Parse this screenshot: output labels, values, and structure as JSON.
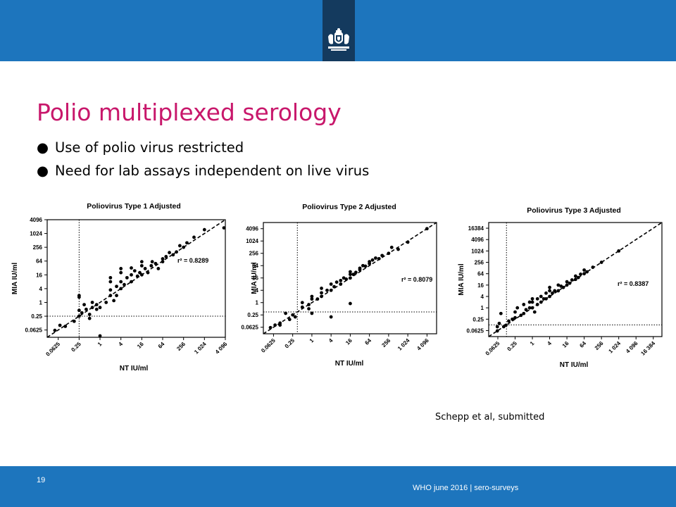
{
  "slide": {
    "title": "Polio multiplexed serology",
    "bullets": [
      "Use of polio virus restricted",
      "Need for lab assays independent on live virus"
    ],
    "citation": "Schepp et al, submitted",
    "page_number": "19",
    "footer": "WHO june 2016 | sero-surveys",
    "logo_icon": "coat-of-arms-icon",
    "colors": {
      "bar": "#1d75bd",
      "logo_box": "#143a5e",
      "title": "#c8176b"
    }
  },
  "chart_data": [
    {
      "type": "scatter",
      "title": "Poliovirus Type 1 Adjusted",
      "xlabel": "NT IU/ml",
      "ylabel": "MIA IU/ml",
      "x_ticks": [
        "0.0625",
        "0.25",
        "1",
        "4",
        "16",
        "64",
        "256",
        "1 024",
        "4 096"
      ],
      "y_ticks": [
        "0.0625",
        "0.25",
        "1",
        "4",
        "16",
        "64",
        "256",
        "1024",
        "4096"
      ],
      "xlim": [
        0.03,
        4096
      ],
      "ylim": [
        0.03,
        4096
      ],
      "scale": "log2",
      "annotation": "r² = 0.8289",
      "cutoff_x": 0.25,
      "cutoff_y": 0.25,
      "points": [
        [
          0.05,
          0.06
        ],
        [
          0.07,
          0.1
        ],
        [
          0.1,
          0.09
        ],
        [
          0.18,
          0.15
        ],
        [
          0.25,
          0.25
        ],
        [
          0.25,
          0.45
        ],
        [
          0.25,
          1.7
        ],
        [
          0.25,
          2.0
        ],
        [
          0.3,
          0.35
        ],
        [
          0.35,
          0.8
        ],
        [
          0.4,
          0.5
        ],
        [
          0.5,
          0.3
        ],
        [
          0.5,
          0.2
        ],
        [
          0.6,
          1.0
        ],
        [
          0.6,
          0.6
        ],
        [
          0.8,
          0.8
        ],
        [
          0.8,
          0.5
        ],
        [
          1.0,
          0.6
        ],
        [
          1.0,
          0.03
        ],
        [
          1.5,
          1.0
        ],
        [
          2.0,
          2.0
        ],
        [
          2.0,
          3.5
        ],
        [
          2.0,
          8
        ],
        [
          2.0,
          12
        ],
        [
          2.5,
          1.2
        ],
        [
          3,
          5
        ],
        [
          3,
          2
        ],
        [
          4,
          4
        ],
        [
          4,
          8
        ],
        [
          4,
          20
        ],
        [
          4,
          30
        ],
        [
          5,
          6
        ],
        [
          6,
          12
        ],
        [
          8,
          8
        ],
        [
          8,
          16
        ],
        [
          8,
          32
        ],
        [
          10,
          24
        ],
        [
          12,
          14
        ],
        [
          14,
          20
        ],
        [
          16,
          16
        ],
        [
          16,
          40
        ],
        [
          16,
          60
        ],
        [
          20,
          30
        ],
        [
          24,
          20
        ],
        [
          30,
          40
        ],
        [
          32,
          60
        ],
        [
          40,
          50
        ],
        [
          48,
          30
        ],
        [
          64,
          80
        ],
        [
          64,
          60
        ],
        [
          80,
          100
        ],
        [
          100,
          150
        ],
        [
          128,
          120
        ],
        [
          160,
          160
        ],
        [
          200,
          300
        ],
        [
          256,
          256
        ],
        [
          320,
          400
        ],
        [
          512,
          700
        ],
        [
          1024,
          1500
        ],
        [
          4096,
          1800
        ]
      ]
    },
    {
      "type": "scatter",
      "title": "Poliovirus Type 2 Adjusted",
      "xlabel": "NT IU/ml",
      "ylabel": "MIA IU/ml",
      "x_ticks": [
        "0.0625",
        "0.25",
        "1",
        "4",
        "16",
        "64",
        "256",
        "1 024",
        "4 096"
      ],
      "y_ticks": [
        "0.0625",
        "0.25",
        "1",
        "4",
        "16",
        "64",
        "256",
        "1024",
        "4096"
      ],
      "xlim": [
        0.03,
        8192
      ],
      "ylim": [
        0.03,
        8192
      ],
      "scale": "log2",
      "annotation": "r² = 0.8079",
      "cutoff_x": 0.35,
      "cutoff_y": 0.35,
      "points": [
        [
          0.05,
          0.06
        ],
        [
          0.07,
          0.08
        ],
        [
          0.1,
          0.1
        ],
        [
          0.1,
          0.08
        ],
        [
          0.15,
          0.3
        ],
        [
          0.2,
          0.15
        ],
        [
          0.25,
          0.25
        ],
        [
          0.3,
          0.2
        ],
        [
          0.5,
          0.6
        ],
        [
          0.5,
          1.0
        ],
        [
          0.8,
          0.5
        ],
        [
          0.8,
          0.8
        ],
        [
          1,
          0.3
        ],
        [
          1,
          1.5
        ],
        [
          1,
          2
        ],
        [
          1.5,
          1.5
        ],
        [
          2,
          2
        ],
        [
          2,
          3
        ],
        [
          2,
          5
        ],
        [
          3,
          4
        ],
        [
          4,
          4
        ],
        [
          4,
          8
        ],
        [
          4,
          0.2
        ],
        [
          5,
          6
        ],
        [
          6,
          10
        ],
        [
          8,
          8
        ],
        [
          8,
          12
        ],
        [
          10,
          16
        ],
        [
          12,
          14
        ],
        [
          16,
          16
        ],
        [
          16,
          24
        ],
        [
          16,
          32
        ],
        [
          16,
          0.9
        ],
        [
          20,
          24
        ],
        [
          24,
          30
        ],
        [
          32,
          40
        ],
        [
          32,
          48
        ],
        [
          40,
          64
        ],
        [
          48,
          60
        ],
        [
          64,
          100
        ],
        [
          64,
          80
        ],
        [
          80,
          120
        ],
        [
          100,
          150
        ],
        [
          128,
          140
        ],
        [
          160,
          200
        ],
        [
          256,
          256
        ],
        [
          320,
          500
        ],
        [
          512,
          400
        ],
        [
          1024,
          900
        ],
        [
          4096,
          4096
        ]
      ]
    },
    {
      "type": "scatter",
      "title": "Poliovirus Type 3 Adjusted",
      "xlabel": "NT IU/ml",
      "ylabel": "MIA IU/ml",
      "x_ticks": [
        "0.0625",
        "0.25",
        "1",
        "4",
        "16",
        "64",
        "256",
        "1 024",
        "4 096",
        "16 384"
      ],
      "y_ticks": [
        "0.0625",
        "0.25",
        "1",
        "4",
        "16",
        "64",
        "256",
        "1024",
        "4096",
        "16384"
      ],
      "xlim": [
        0.03,
        32768
      ],
      "ylim": [
        0.03,
        32768
      ],
      "scale": "log2",
      "annotation": "r² = 0.8387",
      "cutoff_x": 0.125,
      "cutoff_y": 0.125,
      "points": [
        [
          0.06,
          0.06
        ],
        [
          0.06,
          0.1
        ],
        [
          0.07,
          0.15
        ],
        [
          0.08,
          0.5
        ],
        [
          0.1,
          0.1
        ],
        [
          0.12,
          0.12
        ],
        [
          0.15,
          0.2
        ],
        [
          0.2,
          0.25
        ],
        [
          0.25,
          0.3
        ],
        [
          0.25,
          0.6
        ],
        [
          0.3,
          1.0
        ],
        [
          0.4,
          0.4
        ],
        [
          0.5,
          0.5
        ],
        [
          0.5,
          1.5
        ],
        [
          0.6,
          0.8
        ],
        [
          0.8,
          1.0
        ],
        [
          0.8,
          2.0
        ],
        [
          1,
          1
        ],
        [
          1,
          2
        ],
        [
          1,
          3
        ],
        [
          1.2,
          0.6
        ],
        [
          1.5,
          1.5
        ],
        [
          1.5,
          3
        ],
        [
          2,
          2
        ],
        [
          2,
          4
        ],
        [
          2.5,
          3
        ],
        [
          3,
          3
        ],
        [
          3,
          6
        ],
        [
          4,
          4
        ],
        [
          4,
          8
        ],
        [
          4,
          12
        ],
        [
          5,
          6
        ],
        [
          6,
          8
        ],
        [
          8,
          8
        ],
        [
          8,
          16
        ],
        [
          10,
          14
        ],
        [
          12,
          12
        ],
        [
          16,
          16
        ],
        [
          16,
          24
        ],
        [
          20,
          20
        ],
        [
          24,
          30
        ],
        [
          32,
          32
        ],
        [
          32,
          48
        ],
        [
          40,
          40
        ],
        [
          48,
          60
        ],
        [
          64,
          64
        ],
        [
          64,
          100
        ],
        [
          80,
          80
        ],
        [
          128,
          140
        ],
        [
          256,
          256
        ],
        [
          1024,
          1024
        ]
      ]
    }
  ]
}
